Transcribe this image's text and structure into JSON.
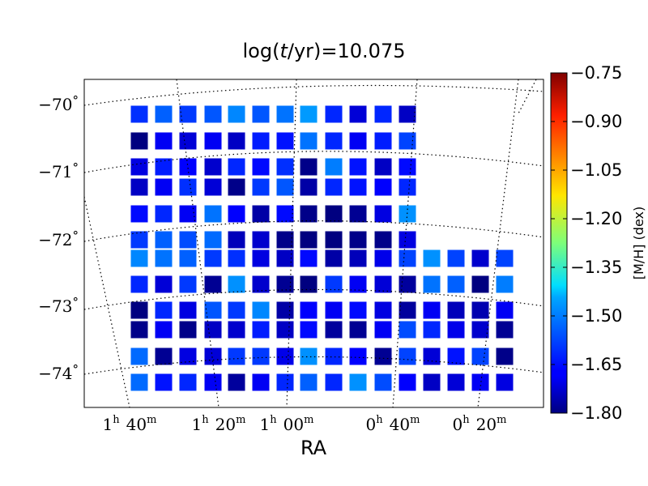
{
  "chart_data": {
    "type": "heatmap",
    "title": "log(t/yr)=10.075",
    "title_parts": {
      "prefix": "log(",
      "italic": "t",
      "suffix": "/yr)=10.075"
    },
    "xlabel": "RA",
    "colorbar": {
      "label": "[M/H] (dex)",
      "range": [
        -1.8,
        -0.75
      ],
      "ticks": [
        "−0.75",
        "−0.90",
        "−1.05",
        "−1.20",
        "−1.35",
        "−1.50",
        "−1.65",
        "−1.80"
      ],
      "colormap": "jet"
    },
    "dec_ticks": [
      {
        "sign": "−",
        "value": "70",
        "deg": "°"
      },
      {
        "sign": "−",
        "value": "71",
        "deg": "°"
      },
      {
        "sign": "−",
        "value": "72",
        "deg": "°"
      },
      {
        "sign": "−",
        "value": "73",
        "deg": "°"
      },
      {
        "sign": "−",
        "value": "74",
        "deg": "°"
      }
    ],
    "ra_ticks": [
      {
        "h": "1",
        "hs": "h",
        "m": "40",
        "ms": "m"
      },
      {
        "h": "1",
        "hs": "h",
        "m": "20",
        "ms": "m"
      },
      {
        "h": "1",
        "hs": "h",
        "m": "00",
        "ms": "m"
      },
      {
        "h": "0",
        "hs": "h",
        "m": "40",
        "ms": "m"
      },
      {
        "h": "0",
        "hs": "h",
        "m": "20",
        "ms": "m"
      }
    ],
    "rows": [
      [
        -1.62,
        -1.57,
        -1.61,
        -1.58,
        -1.53,
        -1.58,
        -1.55,
        -1.51,
        -1.63,
        -1.71,
        -1.63,
        -1.73,
        null,
        null,
        null,
        null,
        null,
        null
      ],
      [
        -1.8,
        -1.68,
        -1.71,
        -1.68,
        -1.73,
        -1.64,
        -1.65,
        -1.55,
        -1.63,
        -1.68,
        -1.64,
        -1.6,
        null,
        null,
        null,
        null,
        null,
        null
      ],
      [
        -1.7,
        -1.64,
        -1.67,
        -1.72,
        -1.63,
        -1.66,
        -1.62,
        -1.79,
        -1.54,
        -1.65,
        -1.73,
        -1.66,
        null,
        null,
        null,
        null,
        null,
        null
      ],
      [
        -1.73,
        -1.68,
        -1.62,
        -1.71,
        -1.79,
        -1.61,
        -1.58,
        -1.76,
        -1.63,
        -1.65,
        -1.67,
        -1.63,
        null,
        null,
        null,
        null,
        null,
        null
      ],
      [
        -1.66,
        -1.63,
        -1.68,
        -1.55,
        -1.67,
        -1.76,
        -1.66,
        -1.79,
        -1.8,
        -1.78,
        -1.7,
        -1.52,
        null,
        null,
        null,
        null,
        null,
        null
      ],
      [
        -1.61,
        -1.57,
        -1.59,
        -1.56,
        -1.74,
        -1.72,
        -1.79,
        -1.8,
        -1.8,
        -1.79,
        -1.79,
        -1.7,
        null,
        null,
        null,
        null,
        null,
        null
      ],
      [
        -1.53,
        -1.55,
        -1.57,
        -1.61,
        -1.62,
        -1.7,
        -1.73,
        -1.66,
        -1.76,
        -1.74,
        -1.69,
        -1.6,
        -1.52,
        -1.6,
        -1.72,
        -1.6,
        null,
        null
      ],
      [
        -1.63,
        -1.71,
        -1.61,
        -1.78,
        -1.52,
        -1.72,
        -1.78,
        -1.8,
        -1.61,
        -1.68,
        -1.71,
        -1.77,
        -1.55,
        -1.57,
        -1.8,
        -1.54,
        null,
        null
      ],
      [
        -1.8,
        -1.63,
        -1.7,
        -1.58,
        -1.61,
        -1.53,
        -1.76,
        -1.67,
        -1.68,
        -1.66,
        -1.7,
        -1.77,
        -1.68,
        -1.74,
        -1.75,
        -1.68,
        null,
        null
      ],
      [
        -1.79,
        -1.68,
        -1.79,
        -1.73,
        -1.72,
        -1.64,
        -1.73,
        -1.66,
        -1.77,
        -1.78,
        -1.68,
        -1.59,
        -1.63,
        -1.69,
        -1.72,
        -1.78,
        null,
        null
      ],
      [
        -1.56,
        -1.78,
        -1.7,
        -1.71,
        -1.61,
        -1.61,
        -1.69,
        -1.52,
        -1.63,
        -1.67,
        -1.78,
        -1.6,
        -1.71,
        -1.65,
        -1.6,
        -1.79,
        null,
        null
      ],
      [
        -1.56,
        -1.65,
        -1.63,
        -1.68,
        -1.77,
        -1.68,
        -1.63,
        -1.57,
        -1.63,
        -1.52,
        -1.59,
        -1.67,
        -1.73,
        -1.71,
        -1.68,
        -1.7,
        null,
        null
      ]
    ]
  }
}
